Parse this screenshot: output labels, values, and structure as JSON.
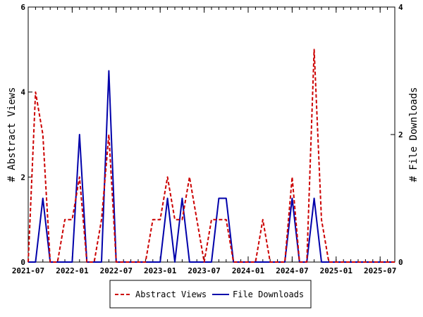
{
  "chart_data": {
    "type": "line",
    "x_ticks": [
      "2021-07",
      "2022-01",
      "2022-07",
      "2023-01",
      "2023-07",
      "2024-01",
      "2024-07",
      "2025-01",
      "2025-07"
    ],
    "xlim": [
      "2021-07",
      "2025-09"
    ],
    "y_left": {
      "label": "# Abstract Views",
      "lim": [
        0,
        6
      ],
      "ticks": [
        "0",
        "2",
        "4",
        "6"
      ]
    },
    "y_right": {
      "label": "# File Downloads",
      "lim": [
        0,
        4
      ],
      "ticks": [
        "0",
        "2",
        "4"
      ]
    },
    "grid": false,
    "legend_position": "bottom-center",
    "series": [
      {
        "name": "Abstract Views",
        "axis": "left",
        "style": "dashed",
        "color": "#cc0000",
        "x": [
          "2021-07",
          "2021-08",
          "2021-09",
          "2021-10",
          "2021-11",
          "2021-12",
          "2022-01",
          "2022-02",
          "2022-03",
          "2022-04",
          "2022-05",
          "2022-06",
          "2022-07",
          "2022-08",
          "2022-09",
          "2022-10",
          "2022-11",
          "2022-12",
          "2023-01",
          "2023-02",
          "2023-03",
          "2023-04",
          "2023-05",
          "2023-06",
          "2023-07",
          "2023-08",
          "2023-09",
          "2023-10",
          "2023-11",
          "2023-12",
          "2024-01",
          "2024-02",
          "2024-03",
          "2024-04",
          "2024-05",
          "2024-06",
          "2024-07",
          "2024-08",
          "2024-09",
          "2024-10",
          "2024-11",
          "2024-12",
          "2025-01",
          "2025-02",
          "2025-03",
          "2025-04",
          "2025-05",
          "2025-06",
          "2025-07",
          "2025-08",
          "2025-09"
        ],
        "values": [
          0,
          4,
          3,
          0,
          0,
          1,
          1,
          2,
          0,
          0,
          1,
          3,
          0,
          0,
          0,
          0,
          0,
          1,
          1,
          2,
          1,
          1,
          2,
          1,
          0,
          1,
          1,
          1,
          0,
          0,
          0,
          0,
          1,
          0,
          0,
          0,
          2,
          0,
          0,
          5,
          1,
          0,
          0,
          0,
          0,
          0,
          0,
          0,
          0,
          0,
          0
        ]
      },
      {
        "name": "File Downloads",
        "axis": "right",
        "style": "solid",
        "color": "#0000aa",
        "x": [
          "2021-07",
          "2021-08",
          "2021-09",
          "2021-10",
          "2021-11",
          "2021-12",
          "2022-01",
          "2022-02",
          "2022-03",
          "2022-04",
          "2022-05",
          "2022-06",
          "2022-07",
          "2022-08",
          "2022-09",
          "2022-10",
          "2022-11",
          "2022-12",
          "2023-01",
          "2023-02",
          "2023-03",
          "2023-04",
          "2023-05",
          "2023-06",
          "2023-07",
          "2023-08",
          "2023-09",
          "2023-10",
          "2023-11",
          "2023-12",
          "2024-01",
          "2024-02",
          "2024-03",
          "2024-04",
          "2024-05",
          "2024-06",
          "2024-07",
          "2024-08",
          "2024-09",
          "2024-10",
          "2024-11",
          "2024-12",
          "2025-01",
          "2025-02",
          "2025-03",
          "2025-04",
          "2025-05",
          "2025-06",
          "2025-07",
          "2025-08",
          "2025-09"
        ],
        "values": [
          0,
          0,
          1,
          0,
          0,
          0,
          0,
          2,
          0,
          0,
          0,
          3,
          0,
          0,
          0,
          0,
          0,
          0,
          0,
          1,
          0,
          1,
          0,
          0,
          0,
          0,
          1,
          1,
          0,
          0,
          0,
          0,
          0,
          0,
          0,
          0,
          1,
          0,
          0,
          1,
          0,
          0,
          0,
          0,
          0,
          0,
          0,
          0,
          0,
          0,
          0
        ]
      }
    ]
  }
}
